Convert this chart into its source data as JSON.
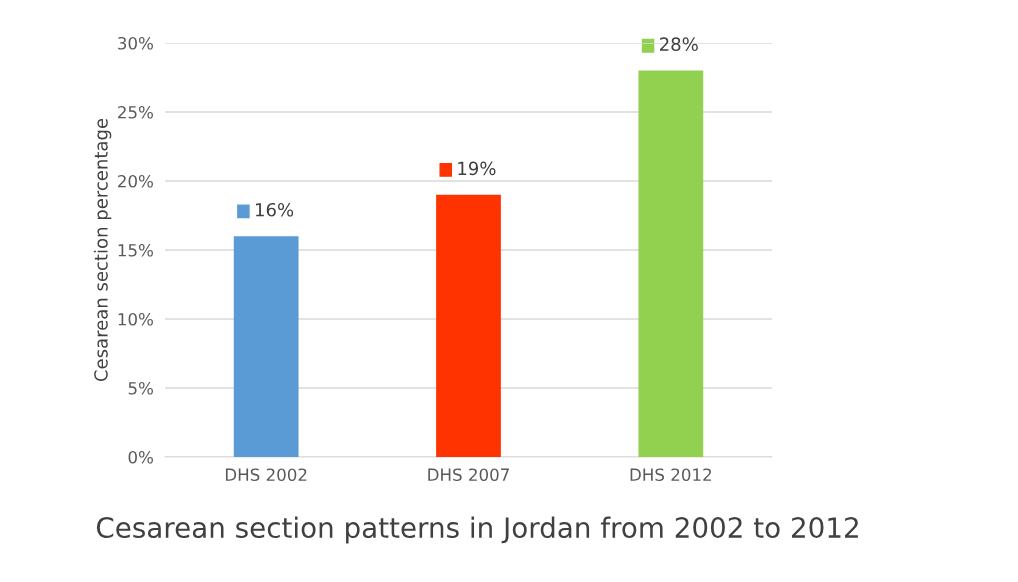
{
  "chart_data": {
    "type": "bar",
    "title": "Cesarean section patterns in Jordan from 2002 to 2012",
    "ylabel": "Cesarean section percentage",
    "categories": [
      "DHS 2002",
      "DHS 2007",
      "DHS 2012"
    ],
    "values": [
      16,
      19,
      28
    ],
    "colors": [
      "#5b9bd5",
      "#ff3300",
      "#92d050"
    ],
    "value_labels": [
      "16%",
      "19%",
      "28%"
    ],
    "ylim": [
      0,
      30
    ],
    "yticks": [
      {
        "value": 0,
        "label": "0%"
      },
      {
        "value": 5,
        "label": "5%"
      },
      {
        "value": 10,
        "label": "10%"
      },
      {
        "value": 15,
        "label": "15%"
      },
      {
        "value": 20,
        "label": "20%"
      },
      {
        "value": 25,
        "label": "25%"
      },
      {
        "value": 30,
        "label": "30%"
      }
    ],
    "grid": "y",
    "legend": false
  }
}
